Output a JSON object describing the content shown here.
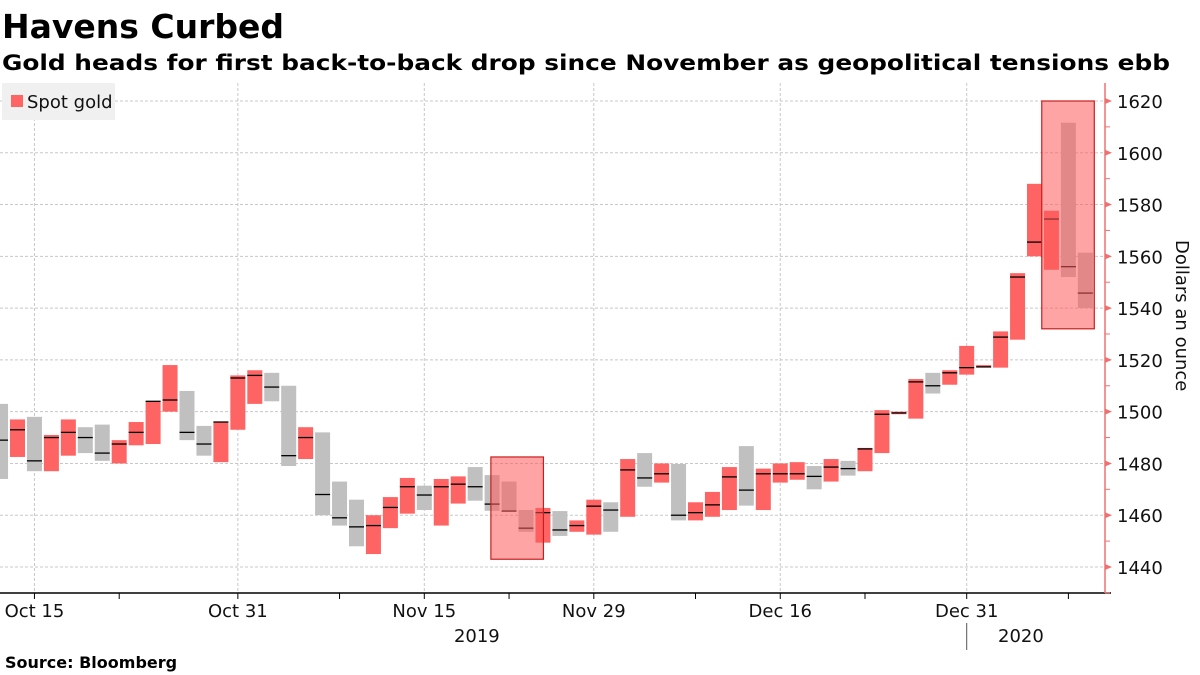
{
  "chart_data": {
    "type": "candlestick-range",
    "title": "Havens Curbed",
    "subtitle": "Gold heads for first back-to-back drop since November as geopolitical tensions ebb",
    "source": "Source: Bloomberg",
    "legend": [
      {
        "name": "Spot gold",
        "color": "#ff6464"
      }
    ],
    "legend_position": "top-left",
    "ylabel": "Dollars an ounce",
    "ylim": [
      1430,
      1625
    ],
    "yticks": [
      1440,
      1460,
      1480,
      1500,
      1520,
      1540,
      1560,
      1580,
      1600,
      1620
    ],
    "y_axis_side": "right",
    "grid": true,
    "x_unit": "trading-day index",
    "xticks_major": [
      {
        "label": "Oct 15",
        "index": 2
      },
      {
        "label": "Oct 31",
        "index": 14
      },
      {
        "label": "Nov 15",
        "index": 25
      },
      {
        "label": "Nov 29",
        "index": 35
      },
      {
        "label": "Dec 16",
        "index": 46
      },
      {
        "label": "Dec 31",
        "index": 57
      }
    ],
    "xticks_minor": [
      7,
      20,
      30,
      41,
      51,
      63
    ],
    "years": [
      {
        "label": "2019",
        "index": 28.1
      },
      {
        "label": "2020",
        "index": 60.2
      }
    ],
    "year_divider_index": 57,
    "colors": {
      "up": "#ff6464",
      "down": "#c0c0c0",
      "close_mark": "#000000",
      "axis": "#f07070",
      "highlight_fill": "#ff5a5a",
      "highlight_stroke": "#c81e1e"
    },
    "candle_fields": [
      "low",
      "high",
      "close",
      "direction"
    ],
    "candles": [
      [
        1474,
        1503,
        1489,
        "down"
      ],
      [
        1482.5,
        1497,
        1493,
        "up"
      ],
      [
        1477,
        1498,
        1481,
        "down"
      ],
      [
        1477,
        1491,
        1490,
        "up"
      ],
      [
        1483,
        1497,
        1492,
        "up"
      ],
      [
        1484,
        1494,
        1490,
        "down"
      ],
      [
        1481,
        1495,
        1484,
        "down"
      ],
      [
        1480,
        1489,
        1487.5,
        "up"
      ],
      [
        1487,
        1496,
        1492,
        "up"
      ],
      [
        1487.5,
        1504,
        1504,
        "up"
      ],
      [
        1500,
        1518,
        1504.5,
        "up"
      ],
      [
        1489,
        1508,
        1492,
        "down"
      ],
      [
        1483,
        1494.5,
        1487.5,
        "down"
      ],
      [
        1480.5,
        1496,
        1496,
        "up"
      ],
      [
        1493,
        1514,
        1513,
        "up"
      ],
      [
        1503,
        1516,
        1514,
        "up"
      ],
      [
        1504,
        1515,
        1509.5,
        "down"
      ],
      [
        1479,
        1510,
        1483,
        "down"
      ],
      [
        1481.7,
        1494,
        1490,
        "up"
      ],
      [
        1460,
        1492,
        1468,
        "down"
      ],
      [
        1456,
        1473,
        1459,
        "down"
      ],
      [
        1448,
        1466,
        1455.5,
        "down"
      ],
      [
        1445,
        1460,
        1456,
        "up"
      ],
      [
        1455,
        1467,
        1463,
        "up"
      ],
      [
        1460.6,
        1474.4,
        1471,
        "up"
      ],
      [
        1462,
        1471.4,
        1467.8,
        "down"
      ],
      [
        1456,
        1474,
        1471,
        "up"
      ],
      [
        1464.5,
        1475,
        1472,
        "up"
      ],
      [
        1465.6,
        1478.6,
        1471,
        "down"
      ],
      [
        1461.7,
        1475.5,
        1464.3,
        "down"
      ],
      [
        1461.5,
        1473,
        1461.6,
        "down"
      ],
      [
        1453.6,
        1462,
        1455,
        "down"
      ],
      [
        1449.4,
        1462.8,
        1461,
        "up"
      ],
      [
        1452,
        1461.6,
        1454.3,
        "down"
      ],
      [
        1453.6,
        1458,
        1456,
        "up"
      ],
      [
        1452.5,
        1466,
        1463.5,
        "up"
      ],
      [
        1453.6,
        1465,
        1462,
        "down"
      ],
      [
        1459.4,
        1481.7,
        1477.5,
        "up"
      ],
      [
        1471,
        1484,
        1474.4,
        "down"
      ],
      [
        1472.6,
        1480,
        1476,
        "up"
      ],
      [
        1458,
        1479.8,
        1460,
        "down"
      ],
      [
        1458,
        1465,
        1461,
        "up"
      ],
      [
        1459.4,
        1469,
        1464,
        "up"
      ],
      [
        1462,
        1478.6,
        1474.8,
        "up"
      ],
      [
        1463.7,
        1486.7,
        1469.7,
        "down"
      ],
      [
        1462,
        1478,
        1476,
        "up"
      ],
      [
        1472.6,
        1480,
        1476,
        "up"
      ],
      [
        1473.7,
        1480.5,
        1476,
        "up"
      ],
      [
        1470,
        1479,
        1475,
        "down"
      ],
      [
        1473,
        1481.7,
        1478.6,
        "up"
      ],
      [
        1475.3,
        1481,
        1478,
        "down"
      ],
      [
        1477,
        1486,
        1485.6,
        "up"
      ],
      [
        1484,
        1500.6,
        1499,
        "up"
      ],
      [
        1499,
        1500,
        1499.5,
        "up"
      ],
      [
        1497.3,
        1512.6,
        1511.5,
        "up"
      ],
      [
        1507,
        1515,
        1510,
        "down"
      ],
      [
        1510.4,
        1516,
        1515,
        "up"
      ],
      [
        1514.3,
        1525.4,
        1517,
        "up"
      ],
      [
        1517,
        1518,
        1517.3,
        "up"
      ],
      [
        1517,
        1531,
        1528.8,
        "up"
      ],
      [
        1527.8,
        1553.5,
        1552,
        "up"
      ],
      [
        1560,
        1588,
        1565.5,
        "up"
      ],
      [
        1554.8,
        1577.6,
        1574.4,
        "up"
      ],
      [
        1552,
        1611.6,
        1556,
        "down"
      ],
      [
        1540,
        1561.4,
        1545.8,
        "down"
      ]
    ],
    "highlights": [
      {
        "from_index": 29.4,
        "to_index": 32.5,
        "low": 1443,
        "high": 1482.5
      },
      {
        "from_index": 61.9,
        "to_index": 65.0,
        "low": 1532,
        "high": 1620
      }
    ]
  }
}
